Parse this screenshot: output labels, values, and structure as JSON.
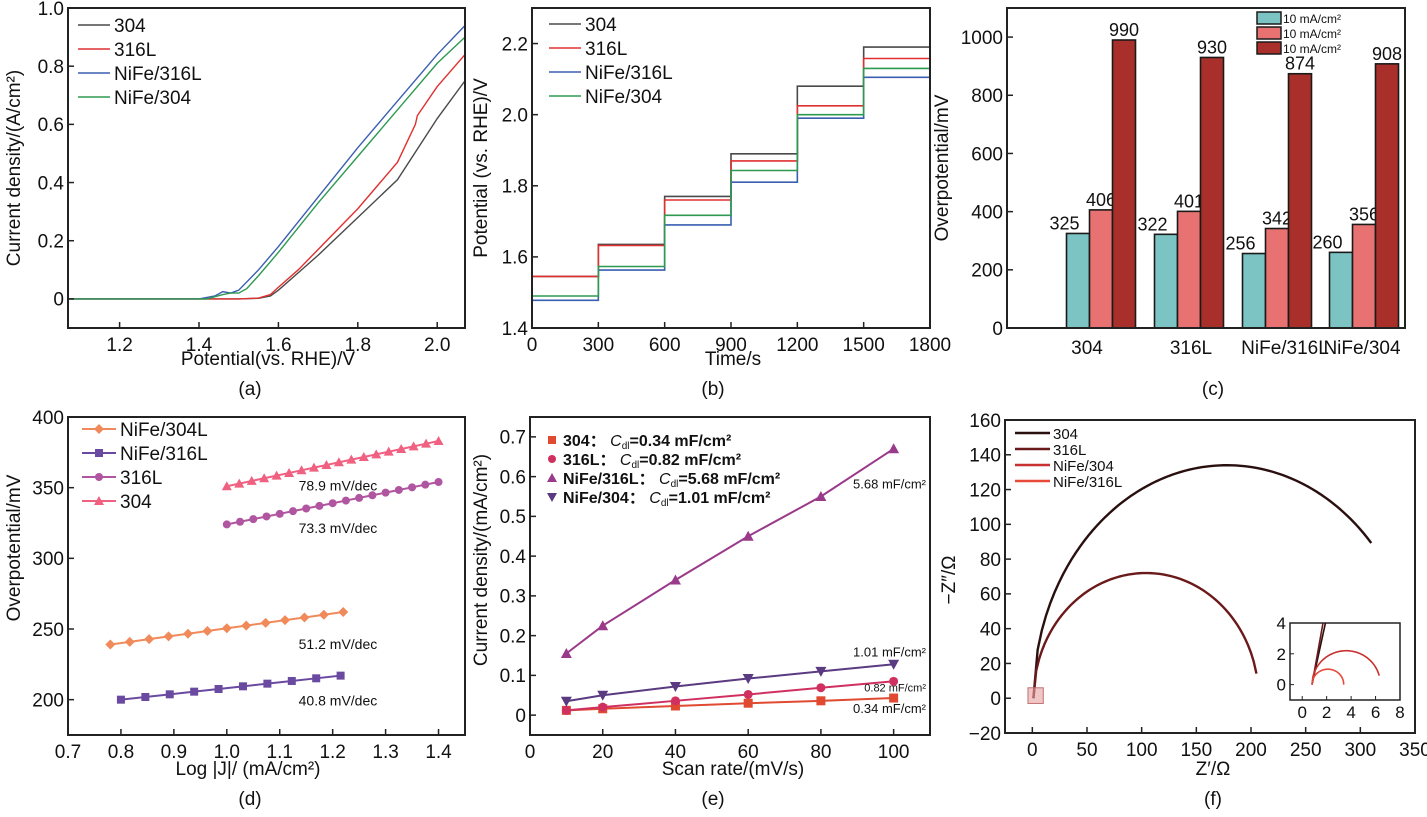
{
  "chart_data": [
    {
      "id": "a",
      "type": "line",
      "panel_label": "(a)",
      "xlabel": "Potential(vs. RHE)/V",
      "ylabel": "Current density/(A/cm²)",
      "xlim": [
        1.07,
        2.07
      ],
      "ylim": [
        -0.1,
        1.0
      ],
      "xticks": [
        1.2,
        1.4,
        1.6,
        1.8,
        2.0
      ],
      "xtick_labels": [
        "1.2",
        "1.4",
        "1.6",
        "1.8",
        "2.0"
      ],
      "yticks": [
        0,
        0.2,
        0.4,
        0.6,
        0.8,
        1.0
      ],
      "ytick_labels": [
        "0",
        "0.2",
        "0.4",
        "0.6",
        "0.8",
        "1.0"
      ],
      "legend_position": "top-left",
      "series": [
        {
          "name": "304",
          "color": "#4a4a4a",
          "x": [
            1.07,
            1.4,
            1.5,
            1.55,
            1.58,
            1.6,
            1.65,
            1.7,
            1.8,
            1.9,
            2.0,
            2.07
          ],
          "y": [
            0,
            0,
            0,
            0.002,
            0.01,
            0.03,
            0.09,
            0.15,
            0.28,
            0.41,
            0.62,
            0.75
          ]
        },
        {
          "name": "316L",
          "color": "#e03030",
          "x": [
            1.07,
            1.4,
            1.5,
            1.55,
            1.58,
            1.6,
            1.65,
            1.7,
            1.8,
            1.9,
            1.945,
            1.95,
            2.0,
            2.07
          ],
          "y": [
            0,
            0,
            0,
            0.003,
            0.015,
            0.04,
            0.1,
            0.17,
            0.31,
            0.47,
            0.6,
            0.63,
            0.73,
            0.84
          ]
        },
        {
          "name": "NiFe/316L",
          "color": "#3a5fb0",
          "x": [
            1.07,
            1.4,
            1.44,
            1.46,
            1.48,
            1.5,
            1.55,
            1.6,
            1.7,
            1.8,
            1.9,
            2.0,
            2.07
          ],
          "y": [
            0,
            0,
            0.01,
            0.025,
            0.02,
            0.03,
            0.1,
            0.18,
            0.35,
            0.52,
            0.68,
            0.84,
            0.94
          ]
        },
        {
          "name": "NiFe/304",
          "color": "#2e9a50",
          "x": [
            1.07,
            1.42,
            1.46,
            1.48,
            1.5,
            1.52,
            1.55,
            1.6,
            1.7,
            1.8,
            1.9,
            2.0,
            2.07
          ],
          "y": [
            0,
            0,
            0.015,
            0.02,
            0.02,
            0.035,
            0.08,
            0.16,
            0.33,
            0.49,
            0.65,
            0.81,
            0.9
          ]
        }
      ]
    },
    {
      "id": "b",
      "type": "line",
      "panel_label": "(b)",
      "xlabel": "Time/s",
      "ylabel": "Potential (vs. RHE)/V",
      "xlim": [
        0,
        1800
      ],
      "ylim": [
        1.4,
        2.3
      ],
      "xticks": [
        0,
        300,
        600,
        900,
        1200,
        1500,
        1800
      ],
      "xtick_labels": [
        "0",
        "300",
        "600",
        "900",
        "1200",
        "1500",
        "1800"
      ],
      "yticks": [
        1.4,
        1.6,
        1.8,
        2.0,
        2.2
      ],
      "ytick_labels": [
        "1.4",
        "1.6",
        "1.8",
        "2.0",
        "2.2"
      ],
      "legend_position": "top-left",
      "step_times": [
        0,
        300,
        600,
        900,
        1200,
        1500,
        1800
      ],
      "series": [
        {
          "name": "304",
          "color": "#4a4a4a",
          "levels": [
            1.545,
            1.635,
            1.77,
            1.89,
            2.08,
            2.19
          ]
        },
        {
          "name": "316L",
          "color": "#e03030",
          "levels": [
            1.545,
            1.632,
            1.76,
            1.87,
            2.025,
            2.158
          ]
        },
        {
          "name": "NiFe/316L",
          "color": "#3a5fb0",
          "levels": [
            1.478,
            1.563,
            1.69,
            1.81,
            1.99,
            2.105
          ]
        },
        {
          "name": "NiFe/304",
          "color": "#2e9a50",
          "levels": [
            1.49,
            1.573,
            1.717,
            1.843,
            2.0,
            2.13
          ]
        }
      ]
    },
    {
      "id": "c",
      "type": "bar",
      "panel_label": "(c)",
      "xlabel": "",
      "ylabel": "Overpotential/mV",
      "ylim": [
        0,
        1100
      ],
      "yticks": [
        0,
        200,
        400,
        600,
        800,
        1000
      ],
      "ytick_labels": [
        "0",
        "200",
        "400",
        "600",
        "800",
        "1000"
      ],
      "categories": [
        "304",
        "316L",
        "NiFe/316L",
        "NiFe/304"
      ],
      "legend_position": "top-right",
      "series": [
        {
          "name": "10 mA/cm²",
          "color": "#7cc4c4",
          "values": [
            325,
            322,
            256,
            260
          ]
        },
        {
          "name": "10 mA/cm²",
          "color": "#e87272",
          "values": [
            406,
            401,
            342,
            356
          ]
        },
        {
          "name": "10 mA/cm²",
          "color": "#a9302a",
          "values": [
            990,
            930,
            874,
            908
          ]
        }
      ]
    },
    {
      "id": "d",
      "type": "line",
      "panel_label": "(d)",
      "xlabel": "Log |J|/ (mA/cm²)",
      "ylabel": "Overpotential/mV",
      "xlim": [
        0.7,
        1.45
      ],
      "ylim": [
        175,
        400
      ],
      "xticks": [
        0.7,
        0.8,
        0.9,
        1.0,
        1.1,
        1.2,
        1.3,
        1.4
      ],
      "xtick_labels": [
        "0.7",
        "0.8",
        "0.9",
        "1.0",
        "1.1",
        "1.2",
        "1.3",
        "1.4"
      ],
      "yticks": [
        200,
        250,
        300,
        350,
        400
      ],
      "ytick_labels": [
        "200",
        "250",
        "300",
        "350",
        "400"
      ],
      "legend_position": "top-left",
      "series": [
        {
          "name": "NiFe/304L",
          "color": "#f08a5a",
          "marker": "diamond",
          "x_start": 0.78,
          "x_end": 1.22,
          "y_start": 239,
          "y_end": 262,
          "n_points": 13,
          "annotation": "51.2 mV/dec",
          "annotation_color": "#f0a080"
        },
        {
          "name": "NiFe/316L",
          "color": "#6a4aa0",
          "marker": "square",
          "x_start": 0.8,
          "x_end": 1.215,
          "y_start": 200,
          "y_end": 217,
          "n_points": 10,
          "annotation": "40.8 mV/dec",
          "annotation_color": "#7a6aa8"
        },
        {
          "name": "316L",
          "color": "#b055a0",
          "marker": "circle",
          "x_start": 1.0,
          "x_end": 1.4,
          "y_start": 324,
          "y_end": 354,
          "n_points": 17,
          "annotation": "73.3 mV/dec",
          "annotation_color": "#b070b0"
        },
        {
          "name": "304",
          "color": "#f06080",
          "marker": "triangle",
          "x_start": 1.0,
          "x_end": 1.4,
          "y_start": 351,
          "y_end": 383,
          "n_points": 18,
          "annotation": "78.9 mV/dec",
          "annotation_color": "#f07090"
        }
      ]
    },
    {
      "id": "e",
      "type": "scatter",
      "panel_label": "(e)",
      "xlabel": "Scan rate/(mV/s)",
      "ylabel": "Current density/(mA/cm²)",
      "xlim": [
        0,
        110
      ],
      "ylim": [
        -0.05,
        0.75
      ],
      "xticks": [
        0,
        20,
        40,
        60,
        80,
        100
      ],
      "xtick_labels": [
        "0",
        "20",
        "40",
        "60",
        "80",
        "100"
      ],
      "yticks": [
        0,
        0.1,
        0.2,
        0.3,
        0.4,
        0.5,
        0.6,
        0.7
      ],
      "ytick_labels": [
        "0",
        "0.1",
        "0.2",
        "0.3",
        "0.4",
        "0.5",
        "0.6",
        "0.7"
      ],
      "legend_position": "top-left",
      "x": [
        10,
        20,
        40,
        60,
        80,
        100
      ],
      "series": [
        {
          "name": "304",
          "legend_text": "304：",
          "cdl_value": "=0.34 mF/cm²",
          "color": "#e04a30",
          "marker": "square",
          "y": [
            0.012,
            0.016,
            0.023,
            0.03,
            0.036,
            0.043
          ],
          "annotation": "0.34 mF/cm²"
        },
        {
          "name": "316L",
          "legend_text": "316L：",
          "cdl_value": "=0.82 mF/cm²",
          "color": "#d03060",
          "marker": "circle",
          "y": [
            0.012,
            0.02,
            0.036,
            0.052,
            0.069,
            0.085
          ],
          "annotation": "0.82 mF/cm²"
        },
        {
          "name": "NiFe/316L",
          "legend_text": "NiFe/316L：",
          "cdl_value": "=5.68 mF/cm²",
          "color": "#9a3a8a",
          "marker": "triangle",
          "y": [
            0.155,
            0.225,
            0.34,
            0.45,
            0.55,
            0.67
          ],
          "annotation": "5.68 mF/cm²"
        },
        {
          "name": "NiFe/304",
          "legend_text": "NiFe/304：",
          "cdl_value": "=1.01 mF/cm²",
          "color": "#5a3a80",
          "marker": "triangle-down",
          "y": [
            0.035,
            0.05,
            0.072,
            0.092,
            0.11,
            0.128
          ],
          "annotation": "1.01 mF/cm²"
        }
      ],
      "cdl_symbol": "C",
      "cdl_subscript": "dl"
    },
    {
      "id": "f",
      "type": "line",
      "panel_label": "(f)",
      "xlabel": "Z′/Ω",
      "ylabel": "−Z″/Ω",
      "xlim": [
        -25,
        350
      ],
      "ylim": [
        -20,
        160
      ],
      "xticks": [
        0,
        50,
        100,
        150,
        200,
        250,
        300,
        350
      ],
      "xtick_labels": [
        "0",
        "50",
        "100",
        "150",
        "200",
        "250",
        "300",
        "350"
      ],
      "yticks": [
        -20,
        0,
        20,
        40,
        60,
        80,
        100,
        120,
        140,
        160
      ],
      "ytick_labels": [
        "−20",
        "0",
        "20",
        "40",
        "60",
        "80",
        "100",
        "120",
        "140",
        "160"
      ],
      "legend_position": "top-left",
      "series": [
        {
          "name": "304",
          "color": "#2a0f0f",
          "arc_start": 1,
          "arc_center": 178,
          "arc_radius": 177,
          "peak": 134,
          "x_end": 310
        },
        {
          "name": "316L",
          "color": "#6a1a1a",
          "arc_start": 1,
          "arc_center": 104,
          "arc_radius": 103,
          "peak": 72,
          "x_end": 205
        },
        {
          "name": "NiFe/304",
          "color": "#c83030",
          "arc_start": 0.8,
          "arc_center": 3.6,
          "arc_radius": 2.8,
          "peak": 2.2,
          "x_end": 6.3
        },
        {
          "name": "NiFe/316L",
          "color": "#e84a3a",
          "arc_start": 0.8,
          "arc_center": 2.1,
          "arc_radius": 1.3,
          "peak": 1.0,
          "x_end": 3.4
        }
      ],
      "inset": {
        "xlim": [
          -1,
          8
        ],
        "ylim": [
          -1,
          4
        ],
        "xticks": [
          0,
          2,
          4,
          6,
          8
        ],
        "xtick_labels": [
          "0",
          "2",
          "4",
          "6",
          "8"
        ],
        "yticks": [
          0,
          2,
          4
        ],
        "ytick_labels": [
          "0",
          "2",
          "4"
        ]
      }
    }
  ]
}
